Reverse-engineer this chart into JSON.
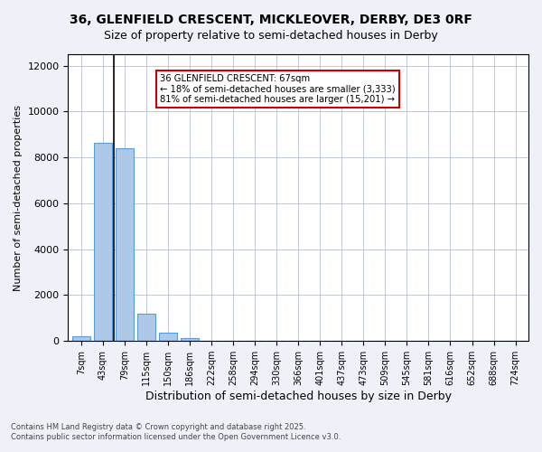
{
  "title_line1": "36, GLENFIELD CRESCENT, MICKLEOVER, DERBY, DE3 0RF",
  "title_line2": "Size of property relative to semi-detached houses in Derby",
  "xlabel": "Distribution of semi-detached houses by size in Derby",
  "ylabel": "Number of semi-detached properties",
  "categories": [
    "7sqm",
    "43sqm",
    "79sqm",
    "115sqm",
    "150sqm",
    "186sqm",
    "222sqm",
    "258sqm",
    "294sqm",
    "330sqm",
    "366sqm",
    "401sqm",
    "437sqm",
    "473sqm",
    "509sqm",
    "545sqm",
    "581sqm",
    "616sqm",
    "652sqm",
    "688sqm",
    "724sqm"
  ],
  "values": [
    200,
    8650,
    8400,
    1200,
    350,
    110,
    0,
    0,
    0,
    0,
    0,
    0,
    0,
    0,
    0,
    0,
    0,
    0,
    0,
    0,
    0
  ],
  "bar_color": "#aec8e8",
  "bar_edge_color": "#5b9bd5",
  "vline_x_index": 1.5,
  "vline_color": "#000000",
  "annotation_title": "36 GLENFIELD CRESCENT: 67sqm",
  "annotation_line2": "← 18% of semi-detached houses are smaller (3,333)",
  "annotation_line3": "81% of semi-detached houses are larger (15,201) →",
  "annotation_box_color": "#ffffff",
  "annotation_box_edge": "#cc0000",
  "ylim": [
    0,
    12500
  ],
  "yticks": [
    0,
    2000,
    4000,
    6000,
    8000,
    10000,
    12000
  ],
  "bg_color": "#eef2f8",
  "plot_bg_color": "#ffffff",
  "grid_color": "#c0c8d8",
  "footer_line1": "Contains HM Land Registry data © Crown copyright and database right 2025.",
  "footer_line2": "Contains public sector information licensed under the Open Government Licence v3.0."
}
